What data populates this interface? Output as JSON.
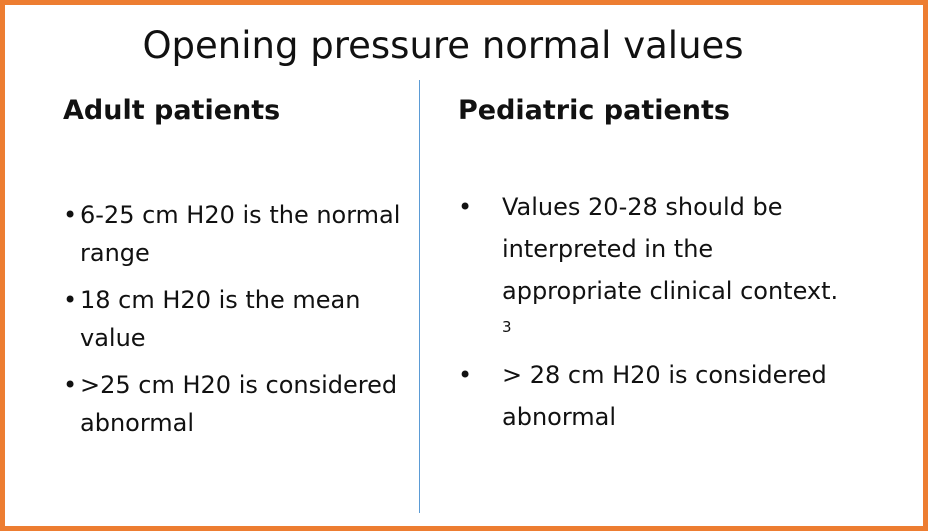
{
  "slide": {
    "title": "Opening pressure normal values",
    "accent_color": "#ed7d31",
    "divider_color": "#5b9bd5",
    "adult": {
      "heading": "Adult patients",
      "bullet": "•",
      "items": [
        "6-25 cm H20 is the normal range",
        "18 cm H20 is the mean value",
        ">25 cm H20 is considered abnormal"
      ]
    },
    "pediatric": {
      "heading": "Pediatric patients",
      "bullet": "•",
      "items": [
        {
          "text": "Values 20-28 should be interpreted in the appropriate clinical context.",
          "superscript": "3"
        },
        {
          "text": "> 28 cm H20 is considered abnormal",
          "superscript": ""
        }
      ]
    }
  }
}
